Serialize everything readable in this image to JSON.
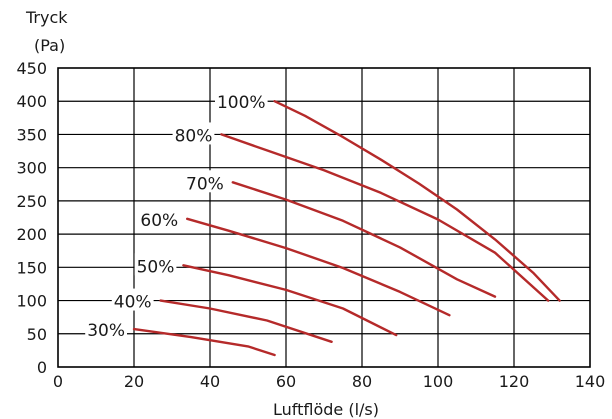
{
  "chart_data": {
    "type": "line",
    "ylabel_line1": "Tryck",
    "ylabel_line2": "(Pa)",
    "xlabel": "Luftflöde (l/s)",
    "xlim": [
      0,
      140
    ],
    "ylim": [
      0,
      450
    ],
    "xticks": [
      0,
      20,
      40,
      60,
      80,
      100,
      120,
      140
    ],
    "yticks": [
      0,
      50,
      100,
      150,
      200,
      250,
      300,
      350,
      400,
      450
    ],
    "grid": true,
    "line_color": "#b52a2a",
    "series": [
      {
        "name": "100%",
        "points": [
          [
            57,
            400
          ],
          [
            65,
            378
          ],
          [
            75,
            346
          ],
          [
            85,
            312
          ],
          [
            95,
            276
          ],
          [
            105,
            237
          ],
          [
            115,
            192
          ],
          [
            125,
            142
          ],
          [
            132,
            100
          ]
        ]
      },
      {
        "name": "80%",
        "points": [
          [
            43,
            350
          ],
          [
            55,
            326
          ],
          [
            70,
            296
          ],
          [
            85,
            262
          ],
          [
            100,
            222
          ],
          [
            115,
            172
          ],
          [
            129,
            100
          ]
        ]
      },
      {
        "name": "70%",
        "points": [
          [
            46,
            278
          ],
          [
            60,
            252
          ],
          [
            75,
            220
          ],
          [
            90,
            180
          ],
          [
            105,
            132
          ],
          [
            115,
            106
          ]
        ]
      },
      {
        "name": "60%",
        "points": [
          [
            34,
            223
          ],
          [
            45,
            205
          ],
          [
            60,
            179
          ],
          [
            75,
            149
          ],
          [
            90,
            113
          ],
          [
            103,
            78
          ]
        ]
      },
      {
        "name": "50%",
        "points": [
          [
            33,
            153
          ],
          [
            45,
            138
          ],
          [
            60,
            116
          ],
          [
            75,
            88
          ],
          [
            89,
            48
          ]
        ]
      },
      {
        "name": "40%",
        "points": [
          [
            27,
            100
          ],
          [
            40,
            88
          ],
          [
            55,
            70
          ],
          [
            72,
            38
          ]
        ]
      },
      {
        "name": "30%",
        "points": [
          [
            20,
            57
          ],
          [
            35,
            45
          ],
          [
            50,
            31
          ],
          [
            57,
            18
          ]
        ]
      }
    ]
  }
}
